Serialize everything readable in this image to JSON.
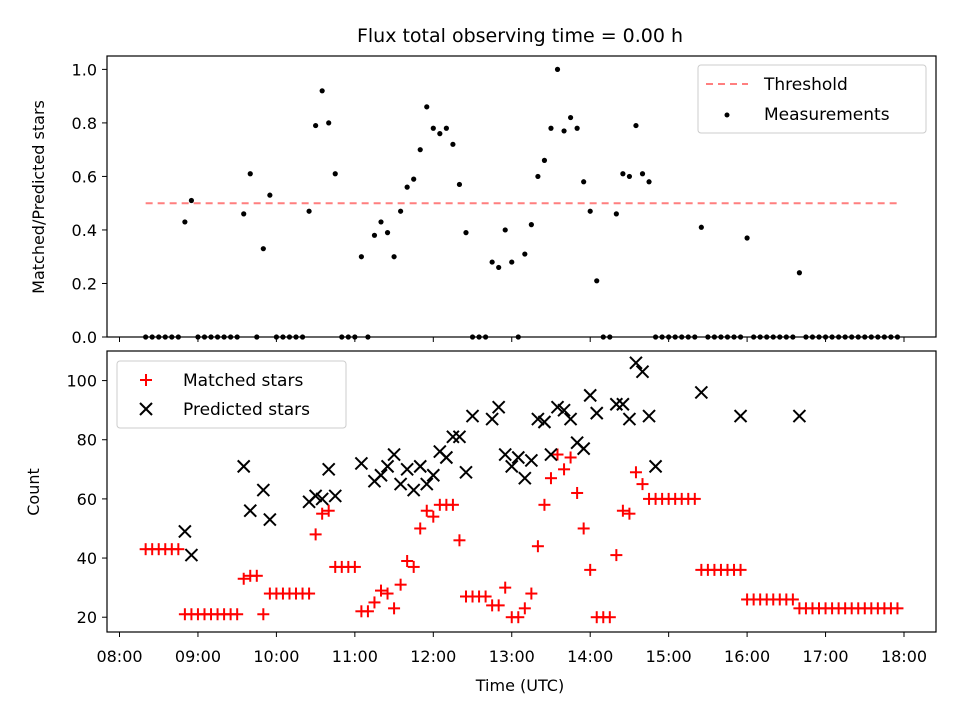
{
  "figure": {
    "title": "Flux total observing time = 0.00 h",
    "xlabel": "Time (UTC)"
  },
  "chart_data": [
    {
      "type": "scatter",
      "title": "Flux total observing time = 0.00 h",
      "xlabel": "",
      "ylabel": "Matched/Predicted stars",
      "ylim": [
        0,
        1.05
      ],
      "xlim": [
        "08:00",
        "18:20"
      ],
      "yticks": [
        "0.0",
        "0.2",
        "0.4",
        "0.6",
        "0.8",
        "1.0"
      ],
      "legend_position": "top-right",
      "threshold": {
        "name": "Threshold",
        "value": 0.5,
        "x_start": "08:20",
        "x_end": "17:58",
        "color": "#ff7f7f"
      },
      "series": [
        {
          "name": "Measurements",
          "color": "#000000",
          "x": [
            "08:20",
            "08:25",
            "08:30",
            "08:35",
            "08:40",
            "08:45",
            "08:50",
            "08:55",
            "09:00",
            "09:05",
            "09:10",
            "09:15",
            "09:20",
            "09:25",
            "09:30",
            "09:35",
            "09:40",
            "09:45",
            "09:50",
            "09:55",
            "10:00",
            "10:05",
            "10:10",
            "10:15",
            "10:20",
            "10:25",
            "10:30",
            "10:35",
            "10:40",
            "10:45",
            "10:50",
            "10:55",
            "11:00",
            "11:05",
            "11:10",
            "11:15",
            "11:20",
            "11:25",
            "11:30",
            "11:35",
            "11:40",
            "11:45",
            "11:50",
            "11:55",
            "12:00",
            "12:05",
            "12:10",
            "12:15",
            "12:20",
            "12:25",
            "12:30",
            "12:35",
            "12:40",
            "12:45",
            "12:50",
            "12:55",
            "13:00",
            "13:05",
            "13:10",
            "13:15",
            "13:20",
            "13:25",
            "13:30",
            "13:35",
            "13:40",
            "13:45",
            "13:50",
            "13:55",
            "14:00",
            "14:05",
            "14:10",
            "14:15",
            "14:20",
            "14:25",
            "14:30",
            "14:35",
            "14:40",
            "14:45",
            "14:50",
            "14:55",
            "15:00",
            "15:05",
            "15:10",
            "15:15",
            "15:20",
            "15:25",
            "15:30",
            "15:35",
            "15:40",
            "15:45",
            "15:50",
            "15:55",
            "16:00",
            "16:05",
            "16:10",
            "16:15",
            "16:20",
            "16:25",
            "16:30",
            "16:35",
            "16:40",
            "16:45",
            "16:50",
            "16:55",
            "17:00",
            "17:05",
            "17:10",
            "17:15",
            "17:20",
            "17:25",
            "17:30",
            "17:35",
            "17:40",
            "17:45",
            "17:50",
            "17:55"
          ],
          "y": [
            0.0,
            0.0,
            0.0,
            0.0,
            0.0,
            0.0,
            0.43,
            0.51,
            0.0,
            0.0,
            0.0,
            0.0,
            0.0,
            0.0,
            0.0,
            0.46,
            0.61,
            0.0,
            0.33,
            0.53,
            0.0,
            0.0,
            0.0,
            0.0,
            0.0,
            0.47,
            0.79,
            0.92,
            0.8,
            0.61,
            0.0,
            0.0,
            0.0,
            0.3,
            0.0,
            0.38,
            0.43,
            0.39,
            0.3,
            0.47,
            0.56,
            0.59,
            0.7,
            0.86,
            0.78,
            0.76,
            0.78,
            0.72,
            0.57,
            0.39,
            0.0,
            0.0,
            0.0,
            0.28,
            0.26,
            0.4,
            0.28,
            0.0,
            0.31,
            0.42,
            0.6,
            0.66,
            0.78,
            1.0,
            0.77,
            0.82,
            0.78,
            0.58,
            0.47,
            0.21,
            0.0,
            0.0,
            0.46,
            0.61,
            0.6,
            0.79,
            0.61,
            0.58,
            0.0,
            0.0,
            0.0,
            0.0,
            0.0,
            0.0,
            0.0,
            0.41,
            0.0,
            0.0,
            0.0,
            0.0,
            0.0,
            0.0,
            0.37,
            0.0,
            0.0,
            0.0,
            0.0,
            0.0,
            0.0,
            0.0,
            0.24,
            0.0,
            0.0,
            0.0,
            0.0,
            0.0,
            0.0,
            0.0,
            0.0,
            0.0,
            0.0,
            0.0,
            0.0,
            0.0,
            0.0,
            0.0
          ]
        }
      ]
    },
    {
      "type": "scatter",
      "title": "",
      "xlabel": "Time (UTC)",
      "ylabel": "Count",
      "ylim": [
        15,
        110
      ],
      "xlim": [
        "08:00",
        "18:20"
      ],
      "yticks": [
        "20",
        "40",
        "60",
        "80",
        "100"
      ],
      "xticks": [
        "08:00",
        "09:00",
        "10:00",
        "11:00",
        "12:00",
        "13:00",
        "14:00",
        "15:00",
        "16:00",
        "17:00",
        "18:00"
      ],
      "legend_position": "top-left",
      "series": [
        {
          "name": "Matched stars",
          "marker": "+",
          "color": "#ff0000",
          "x": [
            "08:20",
            "08:25",
            "08:30",
            "08:35",
            "08:40",
            "08:45",
            "08:50",
            "08:55",
            "09:00",
            "09:05",
            "09:10",
            "09:15",
            "09:20",
            "09:25",
            "09:30",
            "09:35",
            "09:40",
            "09:45",
            "09:50",
            "09:55",
            "10:00",
            "10:05",
            "10:10",
            "10:15",
            "10:20",
            "10:25",
            "10:30",
            "10:35",
            "10:40",
            "10:45",
            "10:50",
            "10:55",
            "11:00",
            "11:05",
            "11:10",
            "11:15",
            "11:20",
            "11:25",
            "11:30",
            "11:35",
            "11:40",
            "11:45",
            "11:50",
            "11:55",
            "12:00",
            "12:05",
            "12:10",
            "12:15",
            "12:20",
            "12:25",
            "12:30",
            "12:35",
            "12:40",
            "12:45",
            "12:50",
            "12:55",
            "13:00",
            "13:05",
            "13:10",
            "13:15",
            "13:20",
            "13:25",
            "13:30",
            "13:35",
            "13:40",
            "13:45",
            "13:50",
            "13:55",
            "14:00",
            "14:05",
            "14:10",
            "14:15",
            "14:20",
            "14:25",
            "14:30",
            "14:35",
            "14:40",
            "14:45",
            "14:50",
            "14:55",
            "15:00",
            "15:05",
            "15:10",
            "15:15",
            "15:20",
            "15:25",
            "15:30",
            "15:35",
            "15:40",
            "15:45",
            "15:50",
            "15:55",
            "16:00",
            "16:05",
            "16:10",
            "16:15",
            "16:20",
            "16:25",
            "16:30",
            "16:35",
            "16:40",
            "16:45",
            "16:50",
            "16:55",
            "17:00",
            "17:05",
            "17:10",
            "17:15",
            "17:20",
            "17:25",
            "17:30",
            "17:35",
            "17:40",
            "17:45",
            "17:50",
            "17:55"
          ],
          "y": [
            43,
            43,
            43,
            43,
            43,
            43,
            21,
            21,
            21,
            21,
            21,
            21,
            21,
            21,
            21,
            33,
            34,
            34,
            21,
            28,
            28,
            28,
            28,
            28,
            28,
            28,
            48,
            55,
            56,
            37,
            37,
            37,
            37,
            22,
            22,
            25,
            29,
            28,
            23,
            31,
            39,
            37,
            50,
            56,
            54,
            58,
            58,
            58,
            46,
            27,
            27,
            27,
            27,
            24,
            24,
            30,
            20,
            20,
            23,
            28,
            44,
            58,
            67,
            75,
            70,
            74,
            62,
            50,
            36,
            20,
            20,
            20,
            41,
            56,
            55,
            69,
            65,
            60,
            60,
            60,
            60,
            60,
            60,
            60,
            60,
            36,
            36,
            36,
            36,
            36,
            36,
            36,
            26,
            26,
            26,
            26,
            26,
            26,
            26,
            26,
            23,
            23,
            23,
            23,
            23,
            23,
            23,
            23,
            23,
            23,
            23,
            23,
            23,
            23,
            23,
            23
          ]
        },
        {
          "name": "Predicted stars",
          "marker": "x",
          "color": "#000000",
          "x": [
            "08:50",
            "08:55",
            "09:35",
            "09:40",
            "09:50",
            "09:55",
            "10:25",
            "10:30",
            "10:35",
            "10:40",
            "10:45",
            "11:05",
            "11:15",
            "11:20",
            "11:25",
            "11:30",
            "11:35",
            "11:40",
            "11:45",
            "11:50",
            "11:55",
            "12:00",
            "12:05",
            "12:10",
            "12:15",
            "12:20",
            "12:25",
            "12:30",
            "12:45",
            "12:50",
            "12:55",
            "13:00",
            "13:05",
            "13:10",
            "13:15",
            "13:20",
            "13:25",
            "13:30",
            "13:35",
            "13:40",
            "13:45",
            "13:50",
            "13:55",
            "14:00",
            "14:05",
            "14:20",
            "14:25",
            "14:30",
            "14:35",
            "14:40",
            "14:45",
            "14:50",
            "15:25",
            "15:55",
            "16:40"
          ],
          "y": [
            49,
            41,
            71,
            56,
            63,
            53,
            59,
            61,
            60,
            70,
            61,
            72,
            66,
            68,
            71,
            75,
            65,
            70,
            63,
            71,
            65,
            68,
            76,
            74,
            81,
            81,
            69,
            88,
            87,
            91,
            75,
            71,
            74,
            67,
            73,
            87,
            86,
            75,
            91,
            90,
            87,
            79,
            77,
            95,
            89,
            92,
            92,
            87,
            106,
            103,
            88,
            71,
            96,
            88,
            88
          ]
        }
      ]
    }
  ]
}
